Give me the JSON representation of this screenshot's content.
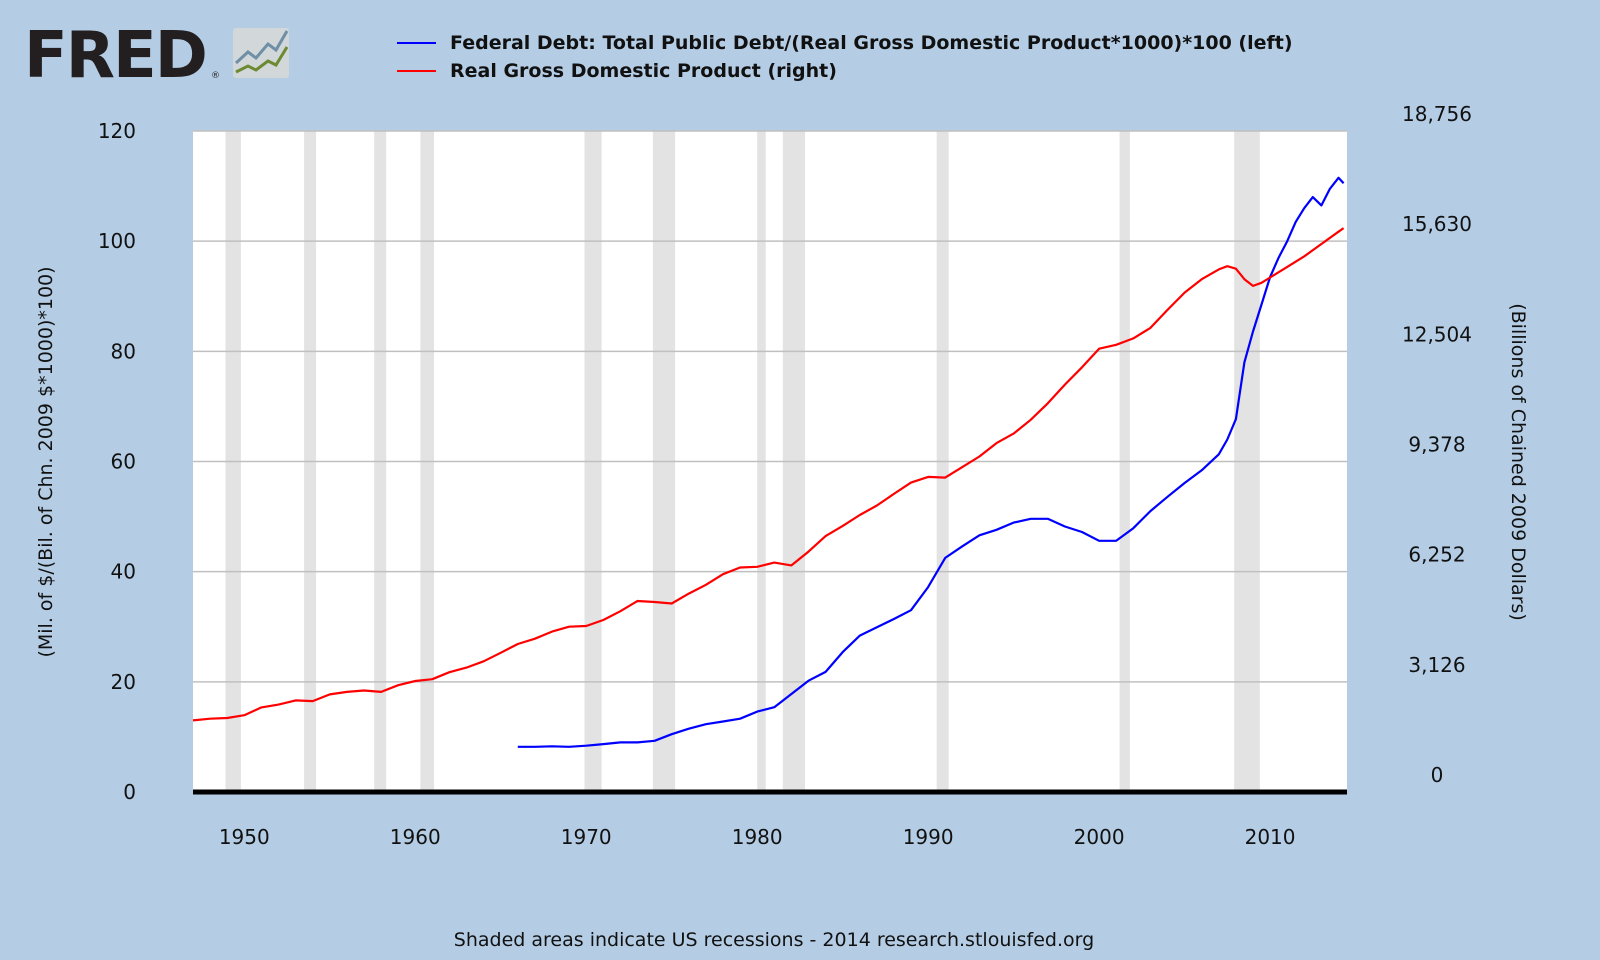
{
  "logo": {
    "text": "FRED",
    "registered": "®"
  },
  "colors": {
    "background": "#b4cde5",
    "plot_bg": "#ffffff",
    "recession": "#e3e3e3",
    "grid": "#c0c0c0",
    "debt_line": "#0000ff",
    "gdp_line": "#ff0000"
  },
  "footer": "Shaded areas indicate US recessions - 2014 research.stlouisfed.org",
  "chart_data": {
    "type": "line",
    "xlabel": "",
    "x_ticks": [
      1950,
      1960,
      1970,
      1980,
      1990,
      2000,
      2010
    ],
    "xlim": [
      1947.0,
      2014.5
    ],
    "y_left": {
      "label": "(Mil. of $/(Bil. of Chn. 2009 $*1000)*100)",
      "ticks": [
        "0",
        "20",
        "40",
        "60",
        "80",
        "100",
        "120"
      ],
      "lim": [
        0,
        120
      ]
    },
    "y_right": {
      "label": "(Billions of Chained 2009 Dollars)",
      "ticks": [
        "0",
        "3,126",
        "6,252",
        "9,378",
        "12,504",
        "15,630",
        "18,756"
      ],
      "lim": [
        0,
        18756
      ]
    },
    "recessions": [
      [
        1948.9,
        1949.8
      ],
      [
        1953.5,
        1954.2
      ],
      [
        1957.6,
        1958.3
      ],
      [
        1960.3,
        1961.1
      ],
      [
        1969.9,
        1970.9
      ],
      [
        1973.9,
        1975.2
      ],
      [
        1980.0,
        1980.5
      ],
      [
        1981.5,
        1982.8
      ],
      [
        1990.5,
        1991.2
      ],
      [
        2001.2,
        2001.8
      ],
      [
        2007.9,
        2009.4
      ]
    ],
    "series": [
      {
        "name": "Federal Debt: Total Public Debt/(Real Gross Domestic Product*1000)*100 (left)",
        "axis": "left",
        "x": [
          1966.0,
          1967.0,
          1968.0,
          1969.0,
          1970.0,
          1971.0,
          1972.0,
          1973.0,
          1974.0,
          1975.0,
          1976.0,
          1977.0,
          1978.0,
          1979.0,
          1980.0,
          1981.0,
          1982.0,
          1983.0,
          1984.0,
          1985.0,
          1986.0,
          1987.0,
          1988.0,
          1989.0,
          1990.0,
          1991.0,
          1992.0,
          1993.0,
          1994.0,
          1995.0,
          1996.0,
          1997.0,
          1998.0,
          1999.0,
          2000.0,
          2001.0,
          2002.0,
          2003.0,
          2004.0,
          2005.0,
          2006.0,
          2007.0,
          2007.5,
          2008.0,
          2008.5,
          2009.0,
          2009.5,
          2010.0,
          2010.5,
          2011.0,
          2011.5,
          2012.0,
          2012.5,
          2013.0,
          2013.5,
          2014.0,
          2014.3
        ],
        "values": [
          8.2,
          8.2,
          8.3,
          8.2,
          8.4,
          8.7,
          9.0,
          9.0,
          9.3,
          10.5,
          11.5,
          12.3,
          12.8,
          13.3,
          14.6,
          15.4,
          17.8,
          20.2,
          21.8,
          25.4,
          28.4,
          29.9,
          31.4,
          33.0,
          37.2,
          42.5,
          44.6,
          46.6,
          47.6,
          48.9,
          49.6,
          49.6,
          48.2,
          47.2,
          45.6,
          45.6,
          47.9,
          51.0,
          53.6,
          56.1,
          58.4,
          61.3,
          64.0,
          67.7,
          78.0,
          83.6,
          88.5,
          93.5,
          97.0,
          100.0,
          103.5,
          106.0,
          108.0,
          106.5,
          109.5,
          111.5,
          110.5
        ]
      },
      {
        "name": "Real Gross Domestic Product (right)",
        "axis": "right",
        "x": [
          1947.0,
          1948.0,
          1949.0,
          1950.0,
          1951.0,
          1952.0,
          1953.0,
          1954.0,
          1955.0,
          1956.0,
          1957.0,
          1958.0,
          1959.0,
          1960.0,
          1961.0,
          1962.0,
          1963.0,
          1964.0,
          1965.0,
          1966.0,
          1967.0,
          1968.0,
          1969.0,
          1970.0,
          1971.0,
          1972.0,
          1973.0,
          1974.0,
          1975.0,
          1976.0,
          1977.0,
          1978.0,
          1979.0,
          1980.0,
          1981.0,
          1982.0,
          1983.0,
          1984.0,
          1985.0,
          1986.0,
          1987.0,
          1988.0,
          1989.0,
          1990.0,
          1991.0,
          1992.0,
          1993.0,
          1994.0,
          1995.0,
          1996.0,
          1997.0,
          1998.0,
          1999.0,
          2000.0,
          2001.0,
          2002.0,
          2003.0,
          2004.0,
          2005.0,
          2006.0,
          2007.0,
          2007.5,
          2008.0,
          2008.5,
          2009.0,
          2009.5,
          2010.0,
          2011.0,
          2012.0,
          2013.0,
          2014.0,
          2014.3
        ],
        "values": [
          2033,
          2080,
          2100,
          2180,
          2400,
          2480,
          2600,
          2580,
          2770,
          2840,
          2880,
          2840,
          3030,
          3150,
          3200,
          3400,
          3530,
          3710,
          3950,
          4200,
          4350,
          4550,
          4690,
          4710,
          4880,
          5130,
          5420,
          5390,
          5350,
          5630,
          5880,
          6180,
          6370,
          6390,
          6510,
          6430,
          6820,
          7260,
          7550,
          7860,
          8130,
          8460,
          8780,
          8940,
          8920,
          9220,
          9520,
          9900,
          10170,
          10560,
          11030,
          11560,
          12050,
          12580,
          12690,
          12870,
          13170,
          13680,
          14170,
          14550,
          14830,
          14920,
          14850,
          14550,
          14360,
          14450,
          14600,
          14900,
          15200,
          15550,
          15900,
          16000
        ]
      }
    ]
  }
}
